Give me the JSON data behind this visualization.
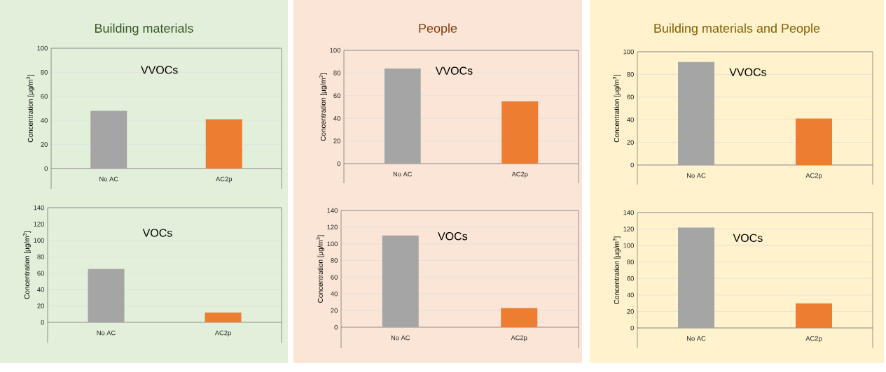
{
  "chart_data": [
    {
      "type": "bar",
      "title": "Building materials",
      "ylabel": "Concentration [µg/m$^{3}$]",
      "categories": [
        "No AC",
        "AC2p"
      ],
      "values": [
        48,
        41
      ],
      "colors": [
        "#a5a5a5",
        "#ed7d31"
      ],
      "ylim": [
        0,
        100
      ],
      "yticks": [
        0,
        20,
        40,
        60,
        80,
        100
      ],
      "grid": "y",
      "annotations": [
        "VVOCs"
      ]
    },
    {
      "type": "bar",
      "ylabel": "Concentration [µg/m$^{3}$]",
      "categories": [
        "No AC",
        "AC2p"
      ],
      "values": [
        65,
        12
      ],
      "colors": [
        "#a5a5a5",
        "#ed7d31"
      ],
      "ylim": [
        0,
        140
      ],
      "yticks": [
        0,
        20,
        40,
        60,
        80,
        100,
        120,
        140
      ],
      "grid": "y",
      "annotations": [
        "VOCs"
      ]
    },
    {
      "type": "bar",
      "title": "People",
      "ylabel": "Concentration [µg/m$^{3}$]",
      "categories": [
        "No AC",
        "AC2p"
      ],
      "values": [
        84,
        55
      ],
      "colors": [
        "#a5a5a5",
        "#ed7d31"
      ],
      "ylim": [
        0,
        100
      ],
      "yticks": [
        0,
        20,
        40,
        60,
        80,
        100
      ],
      "grid": "y",
      "annotations": [
        "VVOCs"
      ]
    },
    {
      "type": "bar",
      "ylabel": "Concentration [µg/m$^{3}$]",
      "categories": [
        "No AC",
        "AC2p"
      ],
      "values": [
        110,
        23
      ],
      "colors": [
        "#a5a5a5",
        "#ed7d31"
      ],
      "ylim": [
        0,
        140
      ],
      "yticks": [
        0,
        20,
        40,
        60,
        80,
        100,
        120,
        140
      ],
      "grid": "y",
      "annotations": [
        "VOCs"
      ]
    },
    {
      "type": "bar",
      "title": "Building materials and People",
      "ylabel": "Concentration [µg/m$^{3}$]",
      "categories": [
        "No AC",
        "AC2p"
      ],
      "values": [
        91,
        41
      ],
      "colors": [
        "#a5a5a5",
        "#ed7d31"
      ],
      "ylim": [
        0,
        100
      ],
      "yticks": [
        0,
        20,
        40,
        60,
        80,
        100
      ],
      "grid": "y",
      "annotations": [
        "VVOCs"
      ]
    },
    {
      "type": "bar",
      "ylabel": "Concentration [µg/m$^{3}$]",
      "categories": [
        "No AC",
        "AC2p"
      ],
      "values": [
        122,
        30
      ],
      "colors": [
        "#a5a5a5",
        "#ed7d31"
      ],
      "ylim": [
        0,
        140
      ],
      "yticks": [
        0,
        20,
        40,
        60,
        80,
        100,
        120,
        140
      ],
      "grid": "y",
      "annotations": [
        "VOCs"
      ]
    }
  ]
}
